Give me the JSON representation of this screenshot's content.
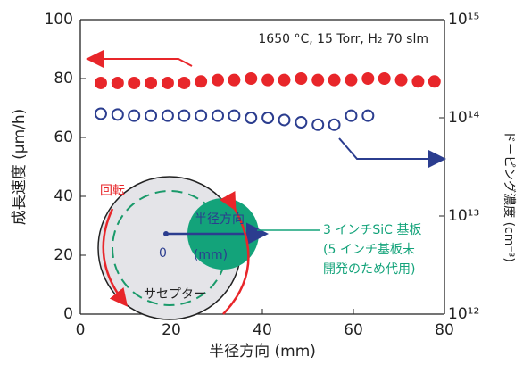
{
  "chart_data": {
    "type": "scatter",
    "annotation": "1650 °C, 15 Torr, H₂ 70 slm",
    "x_label": "半径方向 (mm)",
    "y_label": "成長速度 (μm/h)",
    "y2_label": "ドーピング濃度 (cm⁻³)",
    "xlim": [
      0,
      80
    ],
    "xticks": [
      0,
      20,
      40,
      60,
      80
    ],
    "ylim": [
      0,
      100
    ],
    "yticks": [
      0,
      20,
      40,
      60,
      80,
      100
    ],
    "y2lim": [
      1000000000000.0,
      1000000000000000.0
    ],
    "y2_log": true,
    "y2ticks": [
      {
        "value": 1000000000000.0,
        "label": "10¹²"
      },
      {
        "value": 10000000000000.0,
        "label": "10¹³"
      },
      {
        "value": 100000000000000.0,
        "label": "10¹⁴"
      },
      {
        "value": 1000000000000000.0,
        "label": "10¹⁵"
      }
    ],
    "series": [
      {
        "color": "#e8262a",
        "filled": true,
        "x": [
          4.5,
          8.2,
          11.8,
          15.5,
          19.2,
          22.8,
          26.5,
          30.2,
          33.8,
          37.5,
          41.2,
          44.8,
          48.5,
          52.2,
          55.8,
          59.5,
          63.2,
          66.8,
          70.5,
          74.2,
          77.8
        ],
        "values": [
          78.5,
          78.5,
          78.5,
          78.5,
          78.5,
          78.5,
          79,
          79.5,
          79.5,
          80,
          79.5,
          79.5,
          80,
          79.5,
          79.5,
          79.5,
          80,
          80,
          79.5,
          79,
          79
        ]
      },
      {
        "color": "#2b3d8f",
        "filled": false,
        "axis": "y2",
        "x": [
          4.5,
          8.2,
          11.8,
          15.5,
          19.2,
          22.8,
          26.5,
          30.2,
          33.8,
          37.5,
          41.2,
          44.8,
          48.5,
          52.2,
          55.8,
          59.5,
          63.2
        ],
        "values": [
          110000000000000.0,
          108000000000000.0,
          105000000000000.0,
          105000000000000.0,
          105000000000000.0,
          105000000000000.0,
          105000000000000.0,
          105000000000000.0,
          105000000000000.0,
          100000000000000.0,
          100000000000000.0,
          95000000000000.0,
          90000000000000.0,
          85000000000000.0,
          85000000000000.0,
          105000000000000.0,
          105000000000000.0
        ]
      }
    ],
    "inset": {
      "rotation": "回転",
      "radial": "半径方向",
      "origin": "0",
      "unit": "(mm)",
      "susceptor": "サセプター",
      "wafer_note": [
        "3 インチSiC 基板",
        "(5 インチ基板未",
        "開発のため代用)"
      ]
    }
  }
}
